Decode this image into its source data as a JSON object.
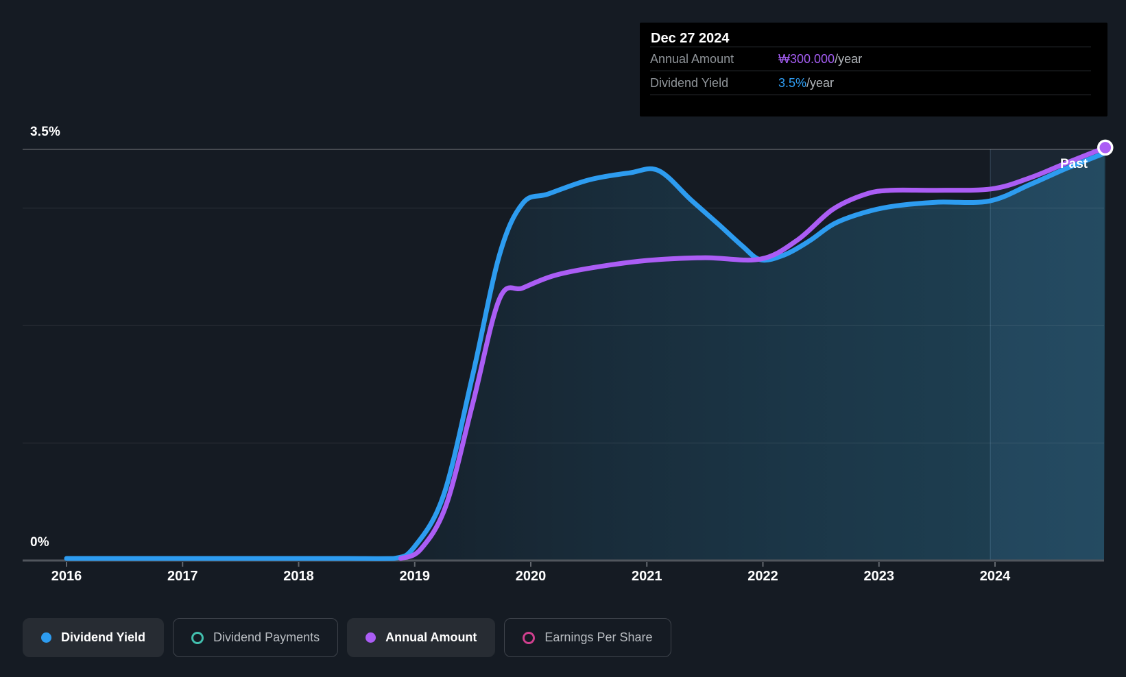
{
  "tooltip": {
    "date": "Dec 27 2024",
    "rows": [
      {
        "label": "Annual Amount",
        "value": "₩300.000",
        "suffix": "/year",
        "value_color": "#a45df2"
      },
      {
        "label": "Dividend Yield",
        "value": "3.5%",
        "suffix": "/year",
        "value_color": "#2f9ef4"
      }
    ]
  },
  "axis": {
    "y_max_label": "3.5%",
    "y_min_label": "0%",
    "x_ticks": [
      "2016",
      "2017",
      "2018",
      "2019",
      "2020",
      "2021",
      "2022",
      "2023",
      "2024"
    ]
  },
  "chart": {
    "past_label": "Past"
  },
  "legend": [
    {
      "label": "Dividend Yield",
      "marker": "dot",
      "color": "#2d9cf0",
      "active": true
    },
    {
      "label": "Dividend Payments",
      "marker": "ring",
      "color": "#42bfae",
      "active": false
    },
    {
      "label": "Annual Amount",
      "marker": "dot",
      "color": "#ab5df5",
      "active": true
    },
    {
      "label": "Earnings Per Share",
      "marker": "ring",
      "color": "#cf3f8e",
      "active": false
    }
  ],
  "chart_data": {
    "type": "line",
    "title": "Dividend history: dividend yield and annual dividend amount, 2016 - Dec 27 2024",
    "x_range": [
      2016,
      2024.95
    ],
    "x_ticks": [
      2016,
      2017,
      2018,
      2019,
      2020,
      2021,
      2022,
      2023,
      2024
    ],
    "ylim_percent": [
      0,
      3.5
    ],
    "grid_percent_faint": [
      1,
      2,
      3
    ],
    "grid_percent_bright": [
      3.5
    ],
    "legend_position": "bottom",
    "past_region_start": 2023.96,
    "colors": {
      "background": "#151b23",
      "area_fill_left": "#16222d",
      "area_fill_right": "#1f4356",
      "past_band": "rgba(120,190,255,0.07)",
      "grid_faint": "rgba(255,255,255,0.10)",
      "grid_bright": "rgba(255,255,255,0.28)",
      "axis_line": "#51565d"
    },
    "series": [
      {
        "name": "Dividend Yield",
        "unit": "%",
        "color": "#2d9cf0",
        "area_fill": true,
        "end_marker": false,
        "points": [
          [
            2016.0,
            0
          ],
          [
            2016.6,
            0
          ],
          [
            2017.2,
            0
          ],
          [
            2017.8,
            0
          ],
          [
            2018.4,
            0
          ],
          [
            2018.82,
            0
          ],
          [
            2019.0,
            0.12
          ],
          [
            2019.25,
            0.56
          ],
          [
            2019.5,
            1.58
          ],
          [
            2019.73,
            2.6
          ],
          [
            2019.93,
            3.04
          ],
          [
            2020.15,
            3.12
          ],
          [
            2020.5,
            3.24
          ],
          [
            2020.85,
            3.3
          ],
          [
            2021.1,
            3.32
          ],
          [
            2021.38,
            3.07
          ],
          [
            2021.62,
            2.86
          ],
          [
            2021.82,
            2.68
          ],
          [
            2021.98,
            2.56
          ],
          [
            2022.18,
            2.6
          ],
          [
            2022.4,
            2.72
          ],
          [
            2022.62,
            2.87
          ],
          [
            2022.9,
            2.97
          ],
          [
            2023.15,
            3.02
          ],
          [
            2023.5,
            3.05
          ],
          [
            2023.95,
            3.06
          ],
          [
            2024.3,
            3.2
          ],
          [
            2024.62,
            3.34
          ],
          [
            2024.95,
            3.47
          ]
        ]
      },
      {
        "name": "Annual Amount",
        "unit": "KRW/year",
        "color": "#ab5df5",
        "area_fill": false,
        "end_marker": true,
        "pct_per_unit": 0.011717,
        "points": [
          [
            2018.88,
            0
          ],
          [
            2019.05,
            8
          ],
          [
            2019.27,
            40
          ],
          [
            2019.5,
            114
          ],
          [
            2019.73,
            190
          ],
          [
            2019.93,
            198
          ],
          [
            2020.2,
            207
          ],
          [
            2020.55,
            213
          ],
          [
            2021.0,
            218
          ],
          [
            2021.5,
            220
          ],
          [
            2021.98,
            219
          ],
          [
            2022.3,
            233
          ],
          [
            2022.6,
            255
          ],
          [
            2022.88,
            266
          ],
          [
            2023.1,
            269
          ],
          [
            2023.5,
            269
          ],
          [
            2023.97,
            270
          ],
          [
            2024.3,
            278
          ],
          [
            2024.62,
            289
          ],
          [
            2024.95,
            300
          ]
        ]
      }
    ]
  }
}
